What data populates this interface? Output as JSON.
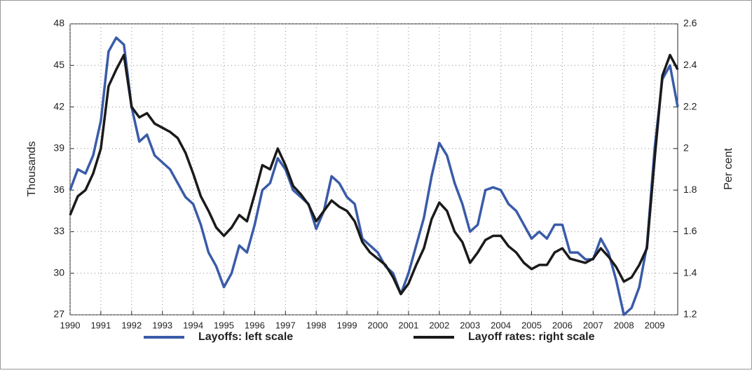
{
  "chart_data": {
    "type": "line",
    "x": [
      1990,
      1990.25,
      1990.5,
      1990.75,
      1991,
      1991.25,
      1991.5,
      1991.75,
      1992,
      1992.25,
      1992.5,
      1992.75,
      1993,
      1993.25,
      1993.5,
      1993.75,
      1994,
      1994.25,
      1994.5,
      1994.75,
      1995,
      1995.25,
      1995.5,
      1995.75,
      1996,
      1996.25,
      1996.5,
      1996.75,
      1997,
      1997.25,
      1997.5,
      1997.75,
      1998,
      1998.25,
      1998.5,
      1998.75,
      1999,
      1999.25,
      1999.5,
      1999.75,
      2000,
      2000.25,
      2000.5,
      2000.75,
      2001,
      2001.25,
      2001.5,
      2001.75,
      2002,
      2002.25,
      2002.5,
      2002.75,
      2003,
      2003.25,
      2003.5,
      2003.75,
      2004,
      2004.25,
      2004.5,
      2004.75,
      2005,
      2005.25,
      2005.5,
      2005.75,
      2006,
      2006.25,
      2006.5,
      2006.75,
      2007,
      2007.25,
      2007.5,
      2007.75,
      2008,
      2008.25,
      2008.5,
      2008.75,
      2009,
      2009.25,
      2009.5,
      2009.75
    ],
    "series": [
      {
        "name": "Layoffs: left scale",
        "color": "#3a5ba9",
        "values": [
          36.0,
          37.5,
          37.2,
          38.5,
          41,
          46,
          47,
          46.5,
          42,
          39.5,
          40,
          38.5,
          38,
          37.5,
          36.5,
          35.5,
          35,
          33.5,
          31.5,
          30.5,
          29,
          30,
          32,
          31.5,
          33.5,
          36,
          36.5,
          38.3,
          37.5,
          36,
          35.5,
          35,
          33.2,
          34.5,
          37,
          36.5,
          35.5,
          35,
          32.5,
          32,
          31.5,
          30.5,
          30,
          28.5,
          30,
          32,
          34,
          37,
          39.4,
          38.5,
          36.5,
          35,
          33,
          33.5,
          36,
          36.2,
          36,
          35,
          34.5,
          33.5,
          32.5,
          33,
          32.5,
          33.5,
          33.5,
          31.5,
          31.5,
          31,
          31,
          32.5,
          31.5,
          29.5,
          27,
          27.5,
          29,
          32,
          39,
          44,
          45,
          42
        ]
      },
      {
        "name": "Layoff rates: right scale",
        "color": "#1a1a1a",
        "axis": "y2",
        "values": [
          1.68,
          1.77,
          1.8,
          1.88,
          2.0,
          2.3,
          2.38,
          2.45,
          2.2,
          2.15,
          2.17,
          2.12,
          2.1,
          2.08,
          2.05,
          1.98,
          1.88,
          1.77,
          1.7,
          1.62,
          1.58,
          1.62,
          1.68,
          1.65,
          1.78,
          1.92,
          1.9,
          2.0,
          1.92,
          1.82,
          1.78,
          1.73,
          1.65,
          1.7,
          1.75,
          1.72,
          1.7,
          1.65,
          1.55,
          1.5,
          1.47,
          1.44,
          1.38,
          1.3,
          1.35,
          1.44,
          1.52,
          1.66,
          1.74,
          1.7,
          1.6,
          1.55,
          1.45,
          1.5,
          1.56,
          1.58,
          1.58,
          1.53,
          1.5,
          1.45,
          1.42,
          1.44,
          1.44,
          1.5,
          1.52,
          1.47,
          1.46,
          1.45,
          1.47,
          1.52,
          1.48,
          1.43,
          1.36,
          1.38,
          1.44,
          1.52,
          1.95,
          2.35,
          2.45,
          2.38
        ]
      }
    ],
    "y_label": "Thousands",
    "y2_label": "Per cent",
    "xlim": [
      1990,
      2009.75
    ],
    "xticks": [
      1990,
      1991,
      1992,
      1993,
      1994,
      1995,
      1996,
      1997,
      1998,
      1999,
      2000,
      2001,
      2002,
      2003,
      2004,
      2005,
      2006,
      2007,
      2008,
      2009
    ],
    "ylim": [
      27,
      48
    ],
    "yticks": [
      27,
      30,
      33,
      36,
      39,
      42,
      45,
      48
    ],
    "y2lim": [
      1.2,
      2.6
    ],
    "y2ticks": [
      1.2,
      1.4,
      1.6,
      1.8,
      2.0,
      2.2,
      2.4,
      2.6
    ],
    "grid": true,
    "legend": "bottom"
  }
}
